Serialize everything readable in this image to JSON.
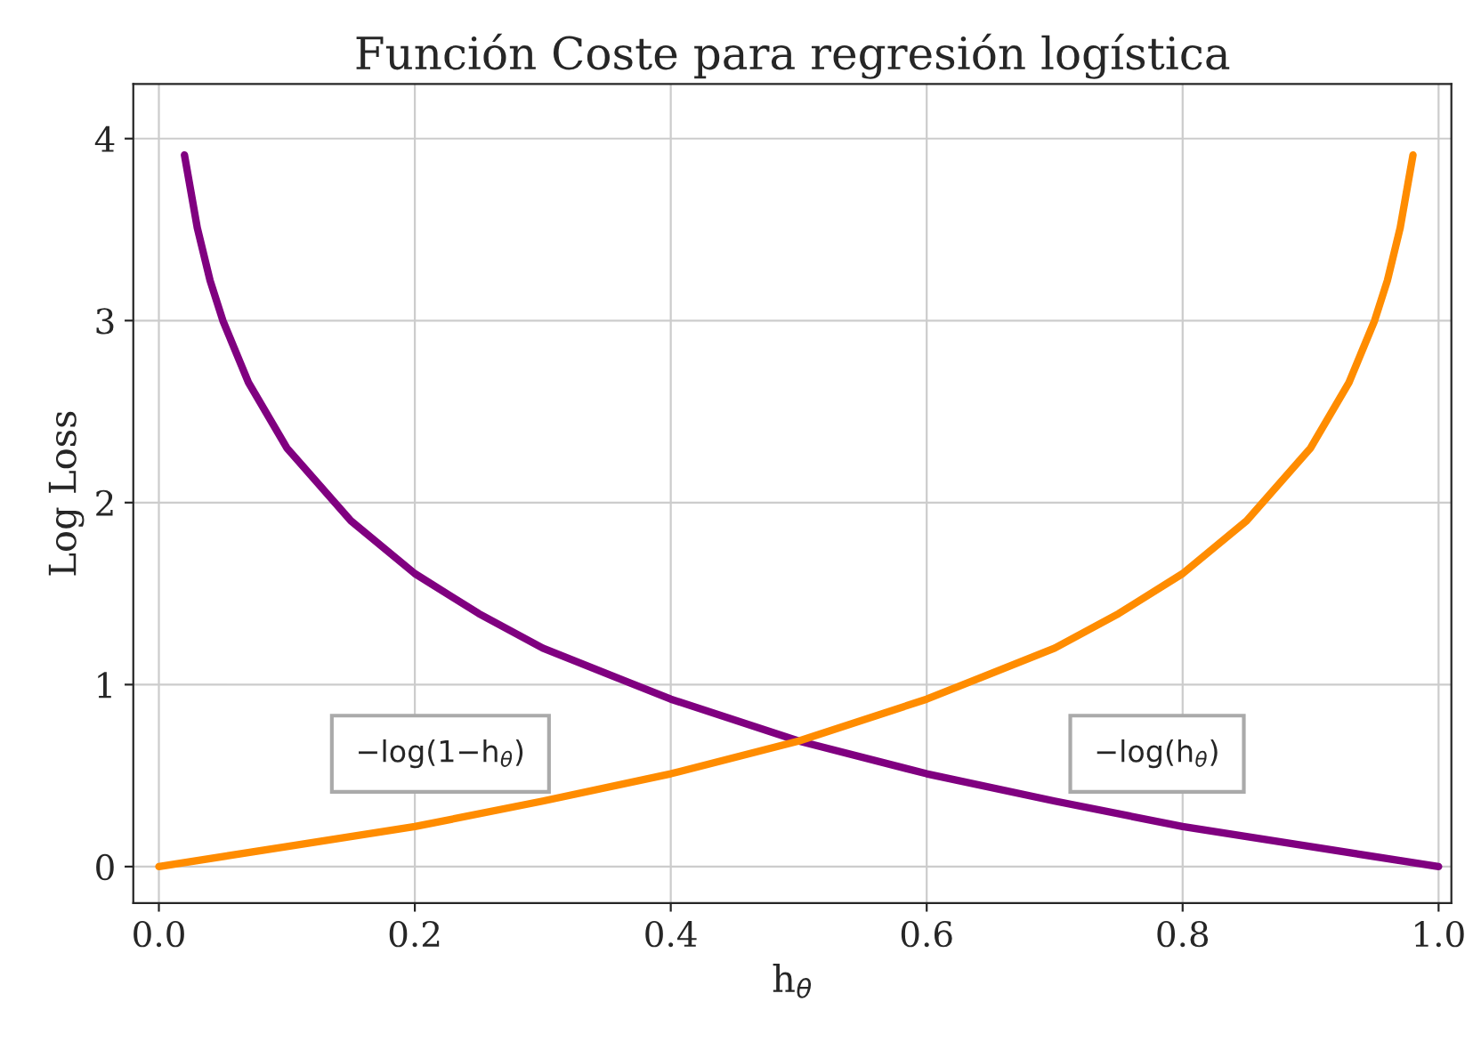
{
  "chart_data": {
    "type": "line",
    "title": "Función Coste para regresión logística",
    "xlabel": "h$_{θ}$",
    "ylabel": "Log Loss",
    "series": [
      {
        "name": "−log(h$_{θ}$)",
        "color": "#800080",
        "x": [
          0.02,
          0.03,
          0.04,
          0.05,
          0.07,
          0.1,
          0.15,
          0.2,
          0.25,
          0.3,
          0.4,
          0.5,
          0.6,
          0.7,
          0.8,
          0.9,
          1.0
        ],
        "values": [
          3.91,
          3.51,
          3.22,
          3.0,
          2.66,
          2.3,
          1.9,
          1.61,
          1.39,
          1.2,
          0.92,
          0.69,
          0.51,
          0.36,
          0.22,
          0.11,
          0.0
        ]
      },
      {
        "name": "−log(1−h$_{θ}$)",
        "color": "#ff8c00",
        "x": [
          0.0,
          0.1,
          0.2,
          0.3,
          0.4,
          0.5,
          0.6,
          0.7,
          0.75,
          0.8,
          0.85,
          0.9,
          0.93,
          0.95,
          0.96,
          0.97,
          0.98
        ],
        "values": [
          0.0,
          0.11,
          0.22,
          0.36,
          0.51,
          0.69,
          0.92,
          1.2,
          1.39,
          1.61,
          1.9,
          2.3,
          2.66,
          3.0,
          3.22,
          3.51,
          3.91
        ]
      }
    ],
    "xlim": [
      -0.02,
      1.01
    ],
    "ylim": [
      -0.2,
      4.3
    ],
    "xticks": [
      {
        "value": 0.0,
        "label": "0.0"
      },
      0.2,
      0.4,
      0.6,
      0.8,
      {
        "value": 1.0,
        "label": "1.0"
      }
    ],
    "yticks": [
      0,
      1,
      2,
      3,
      4
    ],
    "grid": true
  }
}
